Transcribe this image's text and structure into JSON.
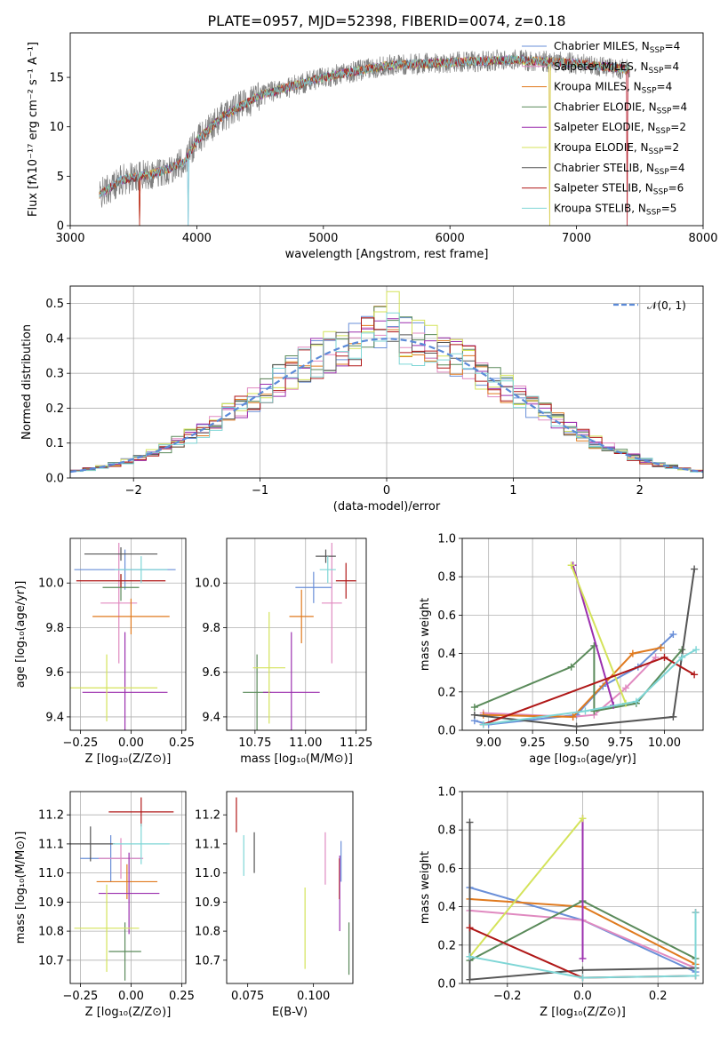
{
  "title": "PLATE=0957, MJD=52398, FIBERID=0074, z=0.18",
  "models": [
    {
      "name": "Chabrier MILES",
      "nssp": "4",
      "color": "#6a8fd8"
    },
    {
      "name": "Salpeter MILES",
      "nssp": "4",
      "color": "#e08ac0"
    },
    {
      "name": "Kroupa MILES",
      "nssp": "4",
      "color": "#e07a1e"
    },
    {
      "name": "Chabrier ELODIE",
      "nssp": "4",
      "color": "#5a8a5a"
    },
    {
      "name": "Salpeter ELODIE",
      "nssp": "2",
      "color": "#9b2fae"
    },
    {
      "name": "Kroupa ELODIE",
      "nssp": "2",
      "color": "#d4e35a"
    },
    {
      "name": "Chabrier STELIB",
      "nssp": "4",
      "color": "#555555"
    },
    {
      "name": "Salpeter STELIB",
      "nssp": "6",
      "color": "#b01818"
    },
    {
      "name": "Kroupa STELIB",
      "nssp": "5",
      "color": "#7fd6d6"
    }
  ],
  "chart_data": [
    {
      "id": "spectrum",
      "type": "line",
      "xlabel": "wavelength [Angstrom, rest frame]",
      "ylabel": "Flux [fλ10⁻¹⁷ erg cm⁻² s⁻¹ A⁻¹]",
      "xlim": [
        3000,
        8000
      ],
      "ylim": [
        0,
        19.5
      ],
      "xticks": [
        3000,
        4000,
        5000,
        6000,
        7000,
        8000
      ],
      "yticks": [
        0,
        5,
        10,
        15
      ],
      "legend": "upper-right",
      "x_range": [
        3230,
        7420
      ],
      "continuum": [
        [
          3230,
          3.1
        ],
        [
          3400,
          4.6
        ],
        [
          3550,
          5.0
        ],
        [
          3700,
          5.4
        ],
        [
          3900,
          6.4
        ],
        [
          4000,
          8.6
        ],
        [
          4200,
          11.0
        ],
        [
          4500,
          13.2
        ],
        [
          5000,
          15.0
        ],
        [
          5500,
          16.2
        ],
        [
          6000,
          16.5
        ],
        [
          6500,
          16.8
        ],
        [
          7000,
          16.4
        ],
        [
          7420,
          15.8
        ]
      ],
      "features": [
        [
          3550,
          0.0
        ],
        [
          3930,
          0.0
        ],
        [
          6790,
          0.0
        ],
        [
          7400,
          0.0
        ]
      ]
    },
    {
      "id": "residuals",
      "type": "histogram",
      "xlabel": "(data-model)/error",
      "ylabel": "Normed distribution",
      "xlim": [
        -2.5,
        2.5
      ],
      "ylim": [
        0,
        0.55
      ],
      "xticks": [
        -2,
        -1,
        0,
        1,
        2
      ],
      "yticks": [
        0.0,
        0.1,
        0.2,
        0.3,
        0.4,
        0.5
      ],
      "grid": true,
      "legend": "upper-right",
      "reference_label": "𝒩(0, 1)",
      "bin_width": 0.1
    },
    {
      "id": "age-vs-Z",
      "type": "errorbar",
      "xlabel": "Z [log₁₀(Z/Z⊙)]",
      "ylabel": "age  [log₁₀(age/yr)]",
      "xlim": [
        -0.3,
        0.27
      ],
      "ylim": [
        9.34,
        10.2
      ],
      "xticks": [
        -0.25,
        0.0,
        0.25
      ],
      "yticks": [
        9.4,
        9.6,
        9.8,
        10.0
      ],
      "grid": true,
      "points": [
        {
          "x": -0.03,
          "y": 10.06,
          "xerr": 0.25,
          "yerr": 0.09
        },
        {
          "x": -0.06,
          "y": 9.91,
          "xerr": 0.09,
          "yerr": 0.27
        },
        {
          "x": 0.0,
          "y": 9.85,
          "xerr": 0.19,
          "yerr": 0.08
        },
        {
          "x": -0.05,
          "y": 9.98,
          "xerr": 0.09,
          "yerr": 0.06
        },
        {
          "x": -0.03,
          "y": 9.51,
          "xerr": 0.21,
          "yerr": 0.27
        },
        {
          "x": -0.12,
          "y": 9.53,
          "xerr": 0.25,
          "yerr": 0.15
        },
        {
          "x": -0.05,
          "y": 10.13,
          "xerr": 0.18,
          "yerr": 0.03
        },
        {
          "x": -0.05,
          "y": 10.01,
          "xerr": 0.22,
          "yerr": 0.03
        },
        {
          "x": 0.05,
          "y": 10.06,
          "xerr": 0.13,
          "yerr": 0.06
        }
      ]
    },
    {
      "id": "age-vs-mass",
      "type": "errorbar",
      "xlabel": "mass [log₁₀(M/M⊙)]",
      "ylabel": "",
      "xlim": [
        10.61,
        11.3
      ],
      "ylim": [
        9.34,
        10.2
      ],
      "xticks": [
        10.75,
        11.0,
        11.25
      ],
      "yticks": [
        9.4,
        9.6,
        9.8,
        10.0
      ],
      "grid": true,
      "points": [
        {
          "x": 11.04,
          "y": 9.98,
          "xerr": 0.09,
          "yerr": 0.07
        },
        {
          "x": 11.13,
          "y": 9.91,
          "xerr": 0.05,
          "yerr": 0.27
        },
        {
          "x": 10.98,
          "y": 9.85,
          "xerr": 0.06,
          "yerr": 0.12
        },
        {
          "x": 10.76,
          "y": 9.51,
          "xerr": 0.07,
          "yerr": 0.17
        },
        {
          "x": 10.93,
          "y": 9.51,
          "xerr": 0.14,
          "yerr": 0.27
        },
        {
          "x": 10.82,
          "y": 9.62,
          "xerr": 0.08,
          "yerr": 0.25
        },
        {
          "x": 11.1,
          "y": 10.12,
          "xerr": 0.05,
          "yerr": 0.03
        },
        {
          "x": 11.2,
          "y": 10.01,
          "xerr": 0.05,
          "yerr": 0.08
        },
        {
          "x": 11.11,
          "y": 10.06,
          "xerr": 0.04,
          "yerr": 0.06
        }
      ]
    },
    {
      "id": "weight-vs-age",
      "type": "line",
      "xlabel": "age  [log₁₀(age/yr)]",
      "ylabel": "mass weight",
      "xlim": [
        8.85,
        10.22
      ],
      "ylim": [
        0,
        1.0
      ],
      "xticks": [
        9.0,
        9.25,
        9.5,
        9.75,
        10.0
      ],
      "yticks": [
        0.0,
        0.2,
        0.4,
        0.6,
        0.8,
        1.0
      ],
      "grid": true,
      "series": [
        {
          "x": [
            8.92,
            9.0,
            9.5,
            9.65,
            9.85,
            10.05
          ],
          "y": [
            0.05,
            0.03,
            0.08,
            0.23,
            0.33,
            0.5
          ]
        },
        {
          "x": [
            8.97,
            9.48,
            9.6,
            9.78,
            9.95
          ],
          "y": [
            0.09,
            0.07,
            0.08,
            0.22,
            0.38
          ]
        },
        {
          "x": [
            8.97,
            9.48,
            9.82,
            9.98
          ],
          "y": [
            0.08,
            0.07,
            0.4,
            0.43
          ]
        },
        {
          "x": [
            8.92,
            9.47,
            9.6,
            9.6,
            9.84,
            10.1
          ],
          "y": [
            0.12,
            0.33,
            0.44,
            0.1,
            0.14,
            0.42
          ]
        },
        {
          "x": [
            9.48,
            9.71
          ],
          "y": [
            0.86,
            0.13
          ]
        },
        {
          "x": [
            9.47,
            9.78
          ],
          "y": [
            0.86,
            0.14
          ]
        },
        {
          "x": [
            8.92,
            9.5,
            10.05,
            10.17
          ],
          "y": [
            0.08,
            0.02,
            0.07,
            0.84
          ]
        },
        {
          "x": [
            8.97,
            10.0,
            10.17
          ],
          "y": [
            0.03,
            0.38,
            0.29
          ]
        },
        {
          "x": [
            8.97,
            9.55,
            9.84,
            10.1,
            10.18
          ],
          "y": [
            0.03,
            0.1,
            0.15,
            0.38,
            0.42
          ]
        }
      ]
    },
    {
      "id": "mass-vs-Z",
      "type": "errorbar",
      "xlabel": "Z [log₁₀(Z/Z⊙)]",
      "ylabel": "mass [log₁₀(M/M⊙)]",
      "xlim": [
        -0.3,
        0.27
      ],
      "ylim": [
        10.62,
        11.28
      ],
      "xticks": [
        -0.25,
        0.0,
        0.25
      ],
      "yticks": [
        10.7,
        10.8,
        10.9,
        11.0,
        11.1,
        11.2
      ],
      "grid": true,
      "points": [
        {
          "x": -0.1,
          "y": 11.05,
          "xerr": 0.15,
          "yerr": 0.08
        },
        {
          "x": -0.05,
          "y": 11.05,
          "xerr": 0.11,
          "yerr": 0.07
        },
        {
          "x": -0.02,
          "y": 10.97,
          "xerr": 0.15,
          "yerr": 0.06
        },
        {
          "x": -0.03,
          "y": 10.73,
          "xerr": 0.08,
          "yerr": 0.1
        },
        {
          "x": -0.01,
          "y": 10.93,
          "xerr": 0.15,
          "yerr": 0.14
        },
        {
          "x": -0.12,
          "y": 10.81,
          "xerr": 0.16,
          "yerr": 0.15
        },
        {
          "x": -0.2,
          "y": 11.1,
          "xerr": 0.12,
          "yerr": 0.06
        },
        {
          "x": 0.05,
          "y": 11.21,
          "xerr": 0.16,
          "yerr": 0.05
        },
        {
          "x": 0.05,
          "y": 11.1,
          "xerr": 0.14,
          "yerr": 0.07
        }
      ]
    },
    {
      "id": "mass-vs-ebv",
      "type": "errorbar",
      "xlabel": "E(B-V)",
      "ylabel": "",
      "xlim": [
        0.067,
        0.115
      ],
      "ylim": [
        10.62,
        11.28
      ],
      "xticks": [
        0.075,
        0.1
      ],
      "grid": false,
      "yticks": [
        10.7,
        10.8,
        10.9,
        11.0,
        11.1,
        11.2
      ],
      "points": [
        {
          "x": 0.1105,
          "y": 11.04,
          "xerr": 0.0,
          "yerr": 0.07
        },
        {
          "x": 0.1045,
          "y": 11.05,
          "xerr": 0.0,
          "yerr": 0.09
        },
        {
          "x": 0.1098,
          "y": 10.98,
          "xerr": 0.0,
          "yerr": 0.07
        },
        {
          "x": 0.1135,
          "y": 10.74,
          "xerr": 0.0,
          "yerr": 0.09
        },
        {
          "x": 0.11,
          "y": 10.93,
          "xerr": 0.0,
          "yerr": 0.13
        },
        {
          "x": 0.0968,
          "y": 10.81,
          "xerr": 0.0,
          "yerr": 0.14
        },
        {
          "x": 0.0775,
          "y": 11.07,
          "xerr": 0.0,
          "yerr": 0.07
        },
        {
          "x": 0.0707,
          "y": 11.2,
          "xerr": 0.0,
          "yerr": 0.06
        },
        {
          "x": 0.0735,
          "y": 11.06,
          "xerr": 0.0,
          "yerr": 0.07
        }
      ]
    },
    {
      "id": "weight-vs-Z",
      "type": "line",
      "xlabel": "Z [log₁₀(Z/Z⊙)]",
      "ylabel": "mass weight",
      "xlim": [
        -0.32,
        0.32
      ],
      "ylim": [
        0,
        1.0
      ],
      "xticks": [
        -0.2,
        0.0,
        0.2
      ],
      "yticks": [
        0.0,
        0.2,
        0.4,
        0.6,
        0.8,
        1.0
      ],
      "grid": true,
      "series": [
        {
          "x": [
            -0.3,
            0.0,
            0.3
          ],
          "y": [
            0.5,
            0.33,
            0.06
          ]
        },
        {
          "x": [
            -0.3,
            0.0,
            0.3
          ],
          "y": [
            0.38,
            0.33,
            0.08
          ]
        },
        {
          "x": [
            -0.3,
            0.0,
            0.3
          ],
          "y": [
            0.44,
            0.4,
            0.1
          ]
        },
        {
          "x": [
            -0.3,
            0.0,
            0.3
          ],
          "y": [
            0.12,
            0.43,
            0.13
          ]
        },
        {
          "x": [
            0.0,
            0.0
          ],
          "y": [
            0.86,
            0.13
          ]
        },
        {
          "x": [
            -0.3,
            0.0
          ],
          "y": [
            0.14,
            0.86
          ]
        },
        {
          "x": [
            -0.3,
            -0.3,
            0.0,
            0.3
          ],
          "y": [
            0.84,
            0.02,
            0.07,
            0.08
          ]
        },
        {
          "x": [
            -0.3,
            0.0,
            0.3,
            0.3
          ],
          "y": [
            0.29,
            0.03,
            0.04,
            0.37
          ]
        },
        {
          "x": [
            -0.3,
            0.0,
            0.3,
            0.3
          ],
          "y": [
            0.14,
            0.03,
            0.04,
            0.37
          ]
        }
      ]
    }
  ]
}
